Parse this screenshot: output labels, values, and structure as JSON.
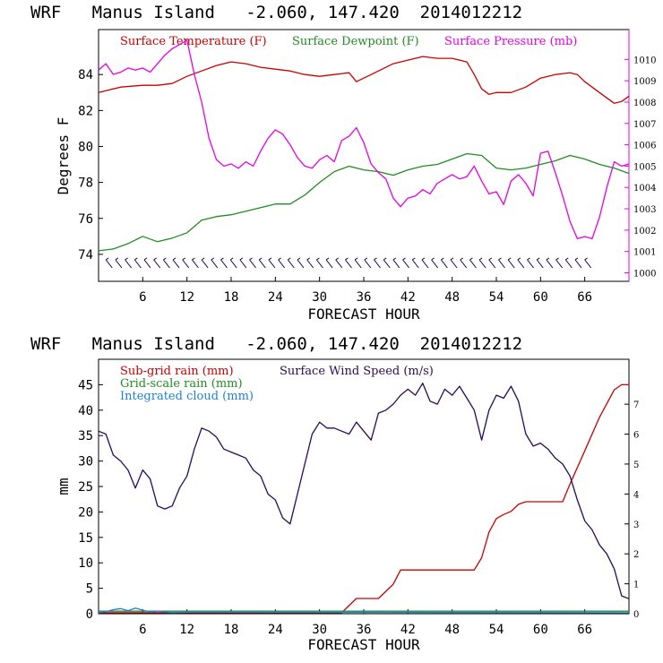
{
  "colors": {
    "temperature": "#cc0000",
    "dewpoint": "#228b22",
    "pressure": "#e800e8",
    "wind_barbs": "#2a0a5a",
    "subgrid_rain": "#cc0000",
    "gridscale_rain": "#228b22",
    "cloud": "#1e7fe0",
    "wind_speed": "#2a0a5a"
  },
  "chart_data": [
    {
      "type": "line",
      "title": "WRF   Manus Island   -2.060, 147.420  2014012212",
      "xlabel": "FORECAST HOUR",
      "ylabel": "Degrees F",
      "xlim": [
        0,
        72
      ],
      "ylim": [
        72.5,
        86.5
      ],
      "x_ticks": [
        6,
        12,
        18,
        24,
        30,
        36,
        42,
        48,
        54,
        60,
        66
      ],
      "y_ticks": [
        74,
        76,
        78,
        80,
        82,
        84
      ],
      "y2lim": [
        999.6,
        1011.4
      ],
      "y2_ticks": [
        1000,
        1001,
        1002,
        1003,
        1004,
        1005,
        1006,
        1007,
        1008,
        1009,
        1010
      ],
      "legend_placement": "top",
      "wind_barbs": {
        "hours": [
          0,
          72
        ],
        "y": 73.5
      },
      "series": [
        {
          "name": "Surface Temperature (F)",
          "color": "#cc0000",
          "axis": "left",
          "x": [
            0,
            1,
            3,
            6,
            8,
            10,
            12,
            14,
            16,
            18,
            20,
            22,
            24,
            26,
            28,
            30,
            32,
            34,
            35,
            36,
            38,
            40,
            42,
            44,
            46,
            48,
            50,
            51,
            52,
            53,
            54,
            56,
            58,
            60,
            62,
            64,
            65,
            66,
            68,
            70,
            71,
            72
          ],
          "y": [
            83.0,
            83.1,
            83.3,
            83.4,
            83.4,
            83.5,
            83.9,
            84.2,
            84.5,
            84.7,
            84.6,
            84.4,
            84.3,
            84.2,
            84.0,
            83.9,
            84.0,
            84.1,
            83.6,
            83.8,
            84.2,
            84.6,
            84.8,
            85.0,
            84.9,
            84.9,
            84.7,
            84.0,
            83.2,
            82.9,
            83.0,
            83.0,
            83.3,
            83.8,
            84.0,
            84.1,
            84.0,
            83.6,
            83.0,
            82.4,
            82.5,
            82.8
          ]
        },
        {
          "name": "Surface Dewpoint (F)",
          "color": "#228b22",
          "axis": "left",
          "x": [
            0,
            2,
            4,
            6,
            8,
            10,
            12,
            14,
            16,
            18,
            20,
            22,
            24,
            26,
            28,
            30,
            32,
            34,
            36,
            38,
            40,
            42,
            44,
            46,
            48,
            50,
            52,
            54,
            56,
            58,
            60,
            62,
            64,
            66,
            68,
            70,
            72
          ],
          "y": [
            74.2,
            74.3,
            74.6,
            75.0,
            74.7,
            74.9,
            75.2,
            75.9,
            76.1,
            76.2,
            76.4,
            76.6,
            76.8,
            76.8,
            77.3,
            78.0,
            78.6,
            78.9,
            78.7,
            78.6,
            78.4,
            78.7,
            78.9,
            79.0,
            79.3,
            79.6,
            79.5,
            78.8,
            78.7,
            78.8,
            79.0,
            79.2,
            79.5,
            79.3,
            79.0,
            78.8,
            78.5
          ]
        },
        {
          "name": "Surface Pressure (mb)",
          "color": "#e800e8",
          "axis": "right",
          "x": [
            0,
            1,
            2,
            3,
            4,
            5,
            6,
            7,
            8,
            9,
            10,
            11,
            12,
            13,
            14,
            15,
            16,
            17,
            18,
            19,
            20,
            21,
            22,
            23,
            24,
            25,
            26,
            27,
            28,
            29,
            30,
            31,
            32,
            33,
            34,
            35,
            36,
            37,
            38,
            39,
            40,
            41,
            42,
            43,
            44,
            45,
            46,
            47,
            48,
            49,
            50,
            51,
            52,
            53,
            54,
            55,
            56,
            57,
            58,
            59,
            60,
            61,
            62,
            63,
            64,
            65,
            66,
            67,
            68,
            69,
            70,
            71,
            72
          ],
          "y": [
            1009.5,
            1009.8,
            1009.3,
            1009.4,
            1009.6,
            1009.5,
            1009.6,
            1009.4,
            1009.8,
            1010.2,
            1010.5,
            1010.7,
            1010.9,
            1009.3,
            1008.0,
            1006.3,
            1005.3,
            1005.0,
            1005.1,
            1004.9,
            1005.2,
            1005.0,
            1005.7,
            1006.3,
            1006.7,
            1006.5,
            1006.0,
            1005.4,
            1005.0,
            1004.9,
            1005.3,
            1005.5,
            1005.2,
            1006.2,
            1006.4,
            1006.8,
            1006.1,
            1005.1,
            1004.7,
            1004.4,
            1003.5,
            1003.1,
            1003.5,
            1003.6,
            1003.9,
            1003.7,
            1004.2,
            1004.4,
            1004.6,
            1004.4,
            1004.5,
            1005.0,
            1004.3,
            1003.7,
            1003.8,
            1003.2,
            1004.3,
            1004.6,
            1004.2,
            1003.6,
            1005.6,
            1005.7,
            1004.7,
            1003.6,
            1002.4,
            1001.6,
            1001.7,
            1001.6,
            1002.6,
            1004.0,
            1005.2,
            1005.0,
            1005.1
          ]
        }
      ]
    },
    {
      "type": "line",
      "title": "WRF   Manus Island   -2.060, 147.420  2014012212",
      "xlabel": "FORECAST HOUR",
      "ylabel": "mm",
      "xlim": [
        0,
        72
      ],
      "ylim": [
        0,
        50
      ],
      "x_ticks": [
        6,
        12,
        18,
        24,
        30,
        36,
        42,
        48,
        54,
        60,
        66
      ],
      "y_ticks": [
        0,
        5,
        10,
        15,
        20,
        25,
        30,
        35,
        40,
        45
      ],
      "y2lim": [
        0,
        8.5
      ],
      "y2_ticks": [
        0,
        1,
        2,
        3,
        4,
        5,
        6,
        7
      ],
      "legend_placement": "top-left",
      "series": [
        {
          "name": "Sub-grid rain (mm)",
          "color": "#cc0000",
          "axis": "left",
          "x": [
            0,
            32,
            33,
            35,
            38,
            40,
            41,
            42,
            50,
            51,
            52,
            53,
            54,
            55,
            56,
            57,
            58,
            60,
            62,
            63,
            64,
            66,
            68,
            70,
            71,
            72
          ],
          "y": [
            0.2,
            0.2,
            0.2,
            3.0,
            3.0,
            5.8,
            8.6,
            8.6,
            8.6,
            8.6,
            11.0,
            16.0,
            18.7,
            19.5,
            20.1,
            21.5,
            22.0,
            22.0,
            22.0,
            22.0,
            25.5,
            32.0,
            38.6,
            44.0,
            45.0,
            45.0
          ]
        },
        {
          "name": "Grid-scale rain (mm)",
          "color": "#228b22",
          "axis": "left",
          "x": [
            0,
            72
          ],
          "y": [
            0.5,
            0.5
          ]
        },
        {
          "name": "Integrated cloud (mm)",
          "color": "#1e7fe0",
          "axis": "left",
          "x": [
            0,
            1,
            2,
            3,
            4,
            5,
            6,
            7,
            8,
            10,
            12,
            72
          ],
          "y": [
            0.2,
            0.4,
            0.8,
            1.0,
            0.6,
            1.1,
            0.7,
            0.3,
            0.5,
            0.2,
            0.3,
            0.2
          ]
        },
        {
          "name": "Surface Wind Speed (m/s)",
          "color": "#2a0a5a",
          "axis": "right",
          "x": [
            0,
            1,
            2,
            3,
            4,
            5,
            6,
            7,
            8,
            9,
            10,
            11,
            12,
            13,
            14,
            15,
            16,
            17,
            18,
            19,
            20,
            21,
            22,
            23,
            24,
            25,
            26,
            27,
            28,
            29,
            30,
            31,
            32,
            33,
            34,
            35,
            36,
            37,
            38,
            39,
            40,
            41,
            42,
            43,
            44,
            45,
            46,
            47,
            48,
            49,
            50,
            51,
            52,
            53,
            54,
            55,
            56,
            57,
            58,
            59,
            60,
            61,
            62,
            63,
            64,
            65,
            66,
            67,
            68,
            69,
            70,
            71,
            72
          ],
          "y": [
            6.1,
            6.0,
            5.3,
            5.1,
            4.8,
            4.2,
            4.8,
            4.5,
            3.6,
            3.5,
            3.6,
            4.2,
            4.6,
            5.5,
            6.2,
            6.1,
            5.9,
            5.5,
            5.4,
            5.3,
            5.2,
            4.8,
            4.6,
            4.0,
            3.8,
            3.2,
            3.0,
            4.0,
            5.0,
            6.0,
            6.4,
            6.2,
            6.2,
            6.1,
            6.0,
            6.4,
            6.1,
            5.8,
            6.7,
            6.8,
            7.0,
            7.3,
            7.5,
            7.3,
            7.7,
            7.1,
            7.0,
            7.5,
            7.3,
            7.6,
            7.2,
            6.8,
            5.8,
            6.8,
            7.3,
            7.2,
            7.6,
            7.1,
            6.0,
            5.6,
            5.7,
            5.5,
            5.2,
            5.0,
            4.6,
            3.8,
            3.1,
            2.8,
            2.3,
            2.0,
            1.5,
            0.6,
            0.5
          ]
        }
      ]
    }
  ]
}
